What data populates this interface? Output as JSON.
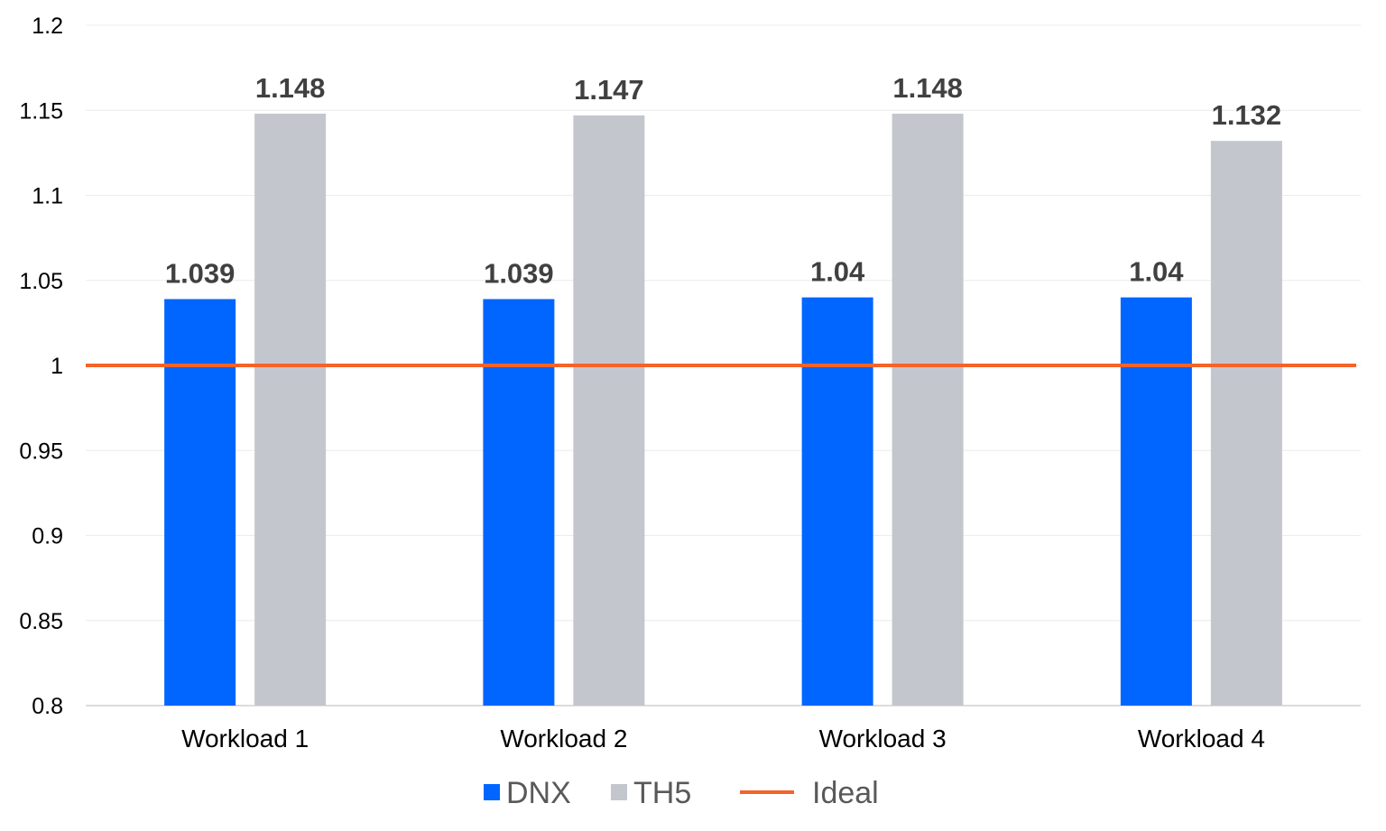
{
  "chart_data": {
    "type": "bar",
    "title": "",
    "xlabel": "",
    "ylabel": "",
    "categories": [
      "Workload 1",
      "Workload 2",
      "Workload 3",
      "Workload 4"
    ],
    "series": [
      {
        "name": "DNX",
        "values": [
          1.039,
          1.039,
          1.04,
          1.04
        ],
        "color": "#0066ff"
      },
      {
        "name": "TH5",
        "values": [
          1.148,
          1.147,
          1.148,
          1.132
        ],
        "color": "#c4c6ce"
      }
    ],
    "data_labels": [
      [
        "1.039",
        "1.039",
        "1.04",
        "1.04"
      ],
      [
        "1.148",
        "1.147",
        "1.148",
        "1.132"
      ]
    ],
    "reference_line": {
      "name": "Ideal",
      "value": 1,
      "color": "#f5632a"
    },
    "ylim": [
      0.8,
      1.2
    ],
    "yticks": [
      0.8,
      0.85,
      0.9,
      0.95,
      1,
      1.05,
      1.1,
      1.15,
      1.2
    ],
    "ytick_labels": [
      "0.8",
      "0.85",
      "0.9",
      "0.95",
      "1",
      "1.05",
      "1.1",
      "1.15",
      "1.2"
    ],
    "grid": true,
    "legend_position": "bottom-center",
    "legend": [
      "DNX",
      "TH5",
      "Ideal"
    ]
  }
}
